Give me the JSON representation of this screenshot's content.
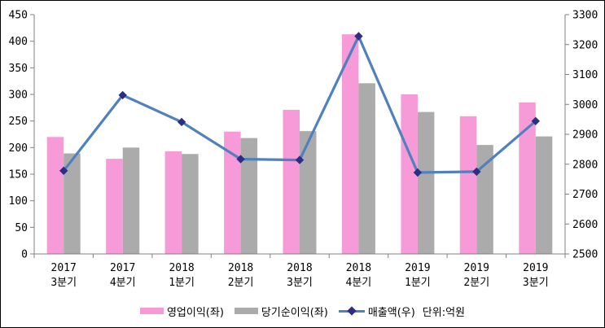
{
  "chart_data": {
    "type": "bar",
    "subtype": "bar-line-combo",
    "categories": [
      [
        "2017",
        "3분기"
      ],
      [
        "2017",
        "4분기"
      ],
      [
        "2018",
        "1분기"
      ],
      [
        "2018",
        "2분기"
      ],
      [
        "2018",
        "3분기"
      ],
      [
        "2018",
        "4분기"
      ],
      [
        "2019",
        "1분기"
      ],
      [
        "2019",
        "2분기"
      ],
      [
        "2019",
        "3분기"
      ]
    ],
    "series": [
      {
        "name": "영업이익(좌)",
        "type": "bar",
        "axis": "left",
        "color": "#F79BD8",
        "values": [
          220,
          179,
          193,
          230,
          271,
          413,
          300,
          259,
          285
        ]
      },
      {
        "name": "당기순이익(좌)",
        "type": "bar",
        "axis": "left",
        "color": "#ABABAB",
        "values": [
          189,
          200,
          188,
          218,
          231,
          321,
          267,
          205,
          221
        ]
      },
      {
        "name": "매출액(우)",
        "type": "line",
        "axis": "right",
        "color": "#4F81BD",
        "marker": "diamond",
        "marker_color": "#2D2D86",
        "values": [
          2778,
          3031,
          2941,
          2817,
          2814,
          3228,
          2772,
          2775,
          2944
        ]
      }
    ],
    "left_axis": {
      "min": 0,
      "max": 450,
      "step": 50,
      "ticks": [
        0,
        50,
        100,
        150,
        200,
        250,
        300,
        350,
        400,
        450
      ]
    },
    "right_axis": {
      "min": 2500,
      "max": 3300,
      "step": 100,
      "ticks": [
        2500,
        2600,
        2700,
        2800,
        2900,
        3000,
        3100,
        3200,
        3300
      ]
    },
    "unit_label": "단위:억원",
    "title": "",
    "grid": false,
    "legend_position": "bottom",
    "axis_color": "#808080",
    "text_color": "#000000",
    "background_color": "#FFFFFF",
    "border_color": "#000000"
  }
}
